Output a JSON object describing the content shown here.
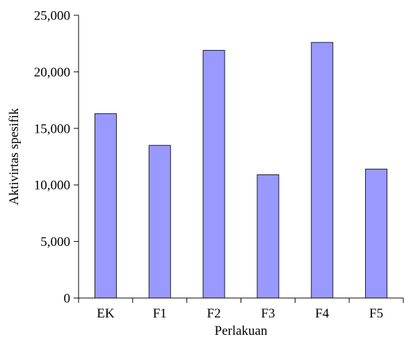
{
  "chart_data": {
    "type": "bar",
    "categories": [
      "EK",
      "F1",
      "F2",
      "F3",
      "F4",
      "F5"
    ],
    "values": [
      16300,
      13500,
      21900,
      10900,
      22600,
      11400
    ],
    "ylim": [
      0,
      25000
    ],
    "yticks": [
      0,
      5000,
      10000,
      15000,
      20000,
      25000
    ],
    "ytick_labels": [
      "0",
      "5,000",
      "10,000",
      "15,000",
      "20,000",
      "25,000"
    ],
    "xlabel": "Perlakuan",
    "ylabel": "Aktivirtas spesifik",
    "title": "",
    "grid": false,
    "legend": "none",
    "bar_color": "#9999ff"
  }
}
